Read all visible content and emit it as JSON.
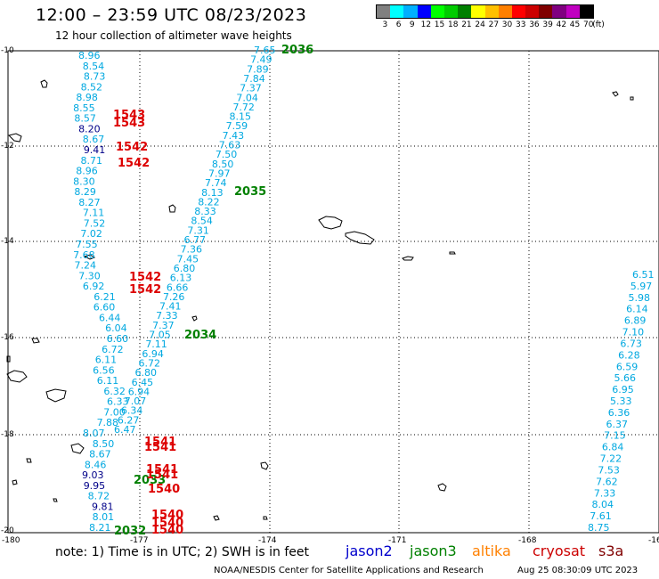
{
  "header": {
    "title": "12:00 – 23:59 UTC 08/23/2023",
    "subtitle": "12 hour collection of altimeter wave heights"
  },
  "scale": {
    "labels": [
      "3",
      "6",
      "9",
      "12",
      "15",
      "18",
      "21",
      "24",
      "27",
      "30",
      "33",
      "36",
      "39",
      "42",
      "45",
      "70",
      "(ft)"
    ],
    "colors": [
      "#808080",
      "#00ffff",
      "#00b0ff",
      "#0000ff",
      "#00ff00",
      "#00cc00",
      "#008000",
      "#ffff00",
      "#ffc000",
      "#ff8000",
      "#ff0000",
      "#cc0000",
      "#800000",
      "#800080",
      "#c000c0",
      "#000000"
    ]
  },
  "axes": {
    "x_ticks": [
      "-180",
      "-177",
      "-174",
      "-171",
      "-168",
      "-16"
    ],
    "y_ticks": [
      "-10",
      "-12",
      "-14",
      "-16",
      "-18",
      "-20"
    ]
  },
  "footer": {
    "note": "note: 1) Time is in UTC; 2) SWH is in feet",
    "legend": [
      {
        "name": "jason2",
        "color": "#0000cc"
      },
      {
        "name": "jason3",
        "color": "#008000"
      },
      {
        "name": "altika",
        "color": "#ff8000"
      },
      {
        "name": "cryosat",
        "color": "#cc0000"
      },
      {
        "name": "s3a",
        "color": "#800000"
      }
    ],
    "credit": "NOAA/NESDIS Center for Satellite Applications and Research",
    "stamp": "Aug 25 08:30:09 UTC 2023"
  },
  "colors": {
    "cyan_text": "#00a8e0",
    "navy_text": "#000088",
    "pass_red": "#dd0000",
    "pass_green": "#008000"
  },
  "tracks": {
    "diag": [
      "7.65",
      "7.49",
      "7.89",
      "7.84",
      "7.37",
      "7.04",
      "7.72",
      "8.15",
      "7.59",
      "7.43",
      "7.63",
      "7.50",
      "8.50",
      "7.97",
      "7.74",
      "8.13",
      "8.22",
      "8.33",
      "8.54",
      "7.31",
      "6.77",
      "7.36",
      "7.45",
      "6.80",
      "6.13",
      "6.66",
      "7.26",
      "7.41",
      "7.33",
      "7.37",
      "7.05",
      "7.11",
      "6.94",
      "6.72",
      "6.80",
      "6.45",
      "6.94",
      "7.07",
      "6.34",
      "6.27",
      "6.47"
    ],
    "west": [
      "8.96",
      "8.54",
      "8.73",
      "8.52",
      "8.98",
      "8.55",
      "8.57",
      "8.20",
      "8.67",
      "9.41",
      "8.71",
      "8.96",
      "8.30",
      "8.29",
      "8.27",
      "7.11",
      "7.52",
      "7.02",
      "7.55",
      "7.68",
      "7.24",
      "7.30",
      "6.92",
      "6.21",
      "6.60",
      "6.44",
      "6.04",
      "6.60",
      "6.72",
      "6.11",
      "6.56",
      "6.11",
      "6.32",
      "6.33",
      "7.00",
      "7.88",
      "8.07",
      "8.50",
      "8.67",
      "8.46",
      "9.03",
      "9.95",
      "8.72",
      "9.81",
      "8.01",
      "8.21"
    ],
    "east": [
      "6.51",
      "5.97",
      "5.98",
      "6.14",
      "6.89",
      "7.10",
      "6.73",
      "6.28",
      "6.59",
      "5.66",
      "6.95",
      "5.33",
      "6.36",
      "6.37",
      "7.15",
      "6.84",
      "7.22",
      "7.53",
      "7.62",
      "7.33",
      "8.04",
      "7.61",
      "8.75"
    ],
    "passes": [
      {
        "label": "2036",
        "color": "green"
      },
      {
        "label": "2035",
        "color": "green"
      },
      {
        "label": "2034",
        "color": "green"
      },
      {
        "label": "2033",
        "color": "green"
      },
      {
        "label": "2032",
        "color": "green"
      },
      {
        "label": "1543",
        "color": "red"
      },
      {
        "label": "1543",
        "color": "red"
      },
      {
        "label": "1542",
        "color": "red"
      },
      {
        "label": "1542",
        "color": "red"
      },
      {
        "label": "1542",
        "color": "red"
      },
      {
        "label": "1542",
        "color": "red"
      },
      {
        "label": "1541",
        "color": "red"
      },
      {
        "label": "1541",
        "color": "red"
      },
      {
        "label": "1541",
        "color": "red"
      },
      {
        "label": "1541",
        "color": "red"
      },
      {
        "label": "1540",
        "color": "red"
      },
      {
        "label": "1540",
        "color": "red"
      },
      {
        "label": "1540",
        "color": "red"
      },
      {
        "label": "1540",
        "color": "red"
      }
    ]
  }
}
